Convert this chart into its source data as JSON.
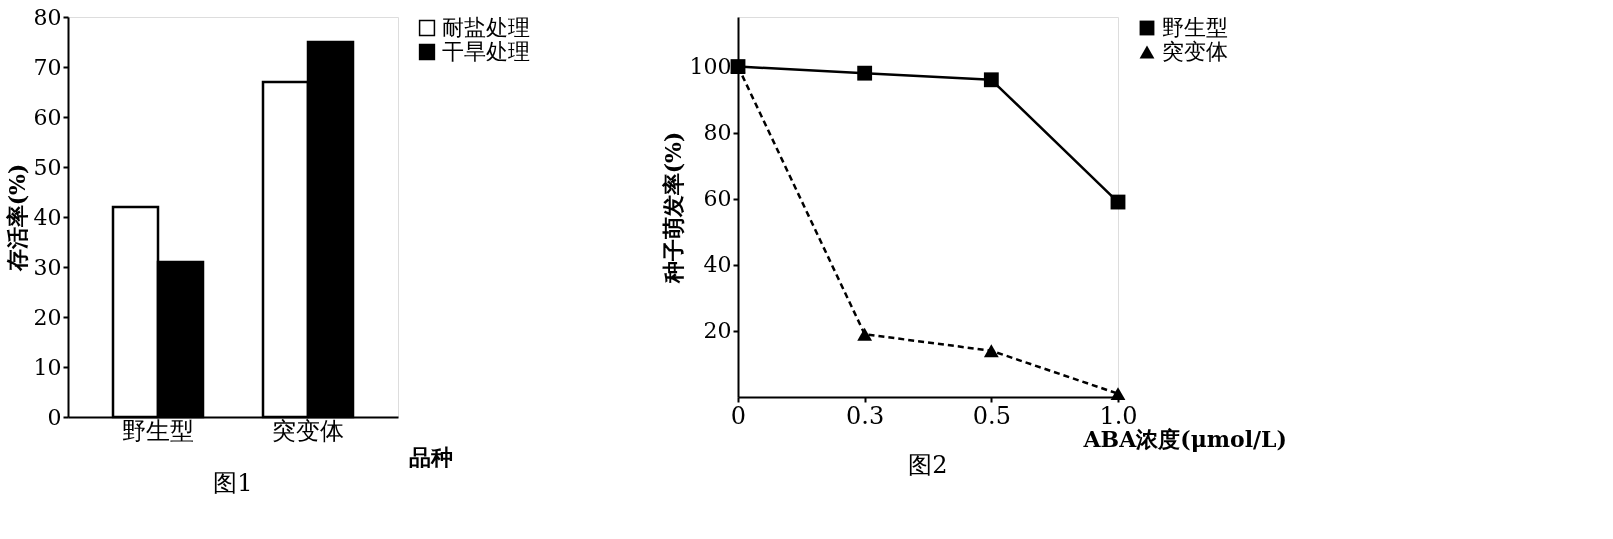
{
  "chart_data": [
    {
      "type": "bar",
      "title": "图1",
      "xlabel": "品种",
      "ylabel": "存活率(%)",
      "categories": [
        "野生型",
        "突变体"
      ],
      "series": [
        {
          "name": "耐盐处理",
          "color": "#ffffff",
          "values": [
            42,
            67
          ]
        },
        {
          "name": "干旱处理",
          "color": "#000000",
          "values": [
            31,
            75
          ]
        }
      ],
      "ylim": [
        0,
        80
      ],
      "yticks": [
        0,
        10,
        20,
        30,
        40,
        50,
        60,
        70,
        80
      ],
      "grid": false,
      "legend": "top right"
    },
    {
      "type": "line",
      "title": "图2",
      "xlabel": "ABA浓度(μmol/L)",
      "ylabel": "种子萌发率(%)",
      "categories": [
        "0",
        "0.3",
        "0.5",
        "1.0"
      ],
      "series": [
        {
          "name": "野生型",
          "color": "#000000",
          "values": [
            100,
            98,
            96,
            59
          ],
          "marker": "square",
          "line_style": "solid"
        },
        {
          "name": "突变体",
          "color": "#000000",
          "values": [
            100,
            19,
            14,
            1
          ],
          "marker": "triangle",
          "line_style": "dashed"
        }
      ],
      "ylim": [
        0,
        115
      ],
      "yticks": [
        20,
        40,
        60,
        80,
        100
      ],
      "grid": false,
      "legend": "top right"
    }
  ]
}
